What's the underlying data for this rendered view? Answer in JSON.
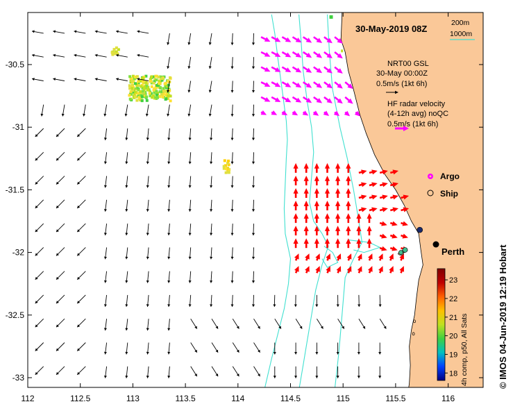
{
  "map": {
    "title": "30-May-2019 08Z",
    "credit": "© IMOS 04-Jun-2019 12:19 Hobart",
    "x_ticks": [
      "112",
      "112.5",
      "113",
      "113.5",
      "114",
      "114.5",
      "115",
      "115.5",
      "116"
    ],
    "y_ticks": [
      "-30.5",
      "-31",
      "-31.5",
      "-32",
      "-32.5",
      "-33"
    ],
    "x_range": [
      112.0,
      116.3
    ],
    "y_range": [
      -33.1,
      -30.1
    ],
    "contour_legend": {
      "line1": "200m",
      "line2": "1000m",
      "line2_color": "#40e0d0"
    },
    "gsl_legend": {
      "line1": "NRT00 GSL",
      "line2": "30-May 00:00Z",
      "line3": "0.5m/s (1kt 6h)"
    },
    "radar_legend": {
      "line1": "HF radar velocity",
      "line2": "(4-12h avg) noQC",
      "line3": "0.5m/s (1kt 6h)",
      "color": "#ff00ff"
    },
    "argo": {
      "label": "Argo",
      "color": "#ff00ff"
    },
    "ship": {
      "label": "Ship"
    },
    "city": {
      "label": "Perth",
      "lon": 115.87,
      "lat": -31.95
    },
    "colorbar": {
      "ticks": [
        "18",
        "19",
        "20",
        "21",
        "22",
        "23"
      ],
      "label": "4h comp, p50, All Sats",
      "min": 17.6,
      "max": 23.6,
      "colors": [
        "#000080",
        "#0040ff",
        "#00c0c0",
        "#40d040",
        "#c0e020",
        "#ffc000",
        "#ff6000",
        "#c00000",
        "#800000"
      ]
    },
    "colors": {
      "land": "#fac898",
      "isobath": "#40e0d0",
      "current": "#000000",
      "radar_north": "#ff00ff",
      "radar_south": "#ff0000"
    }
  }
}
